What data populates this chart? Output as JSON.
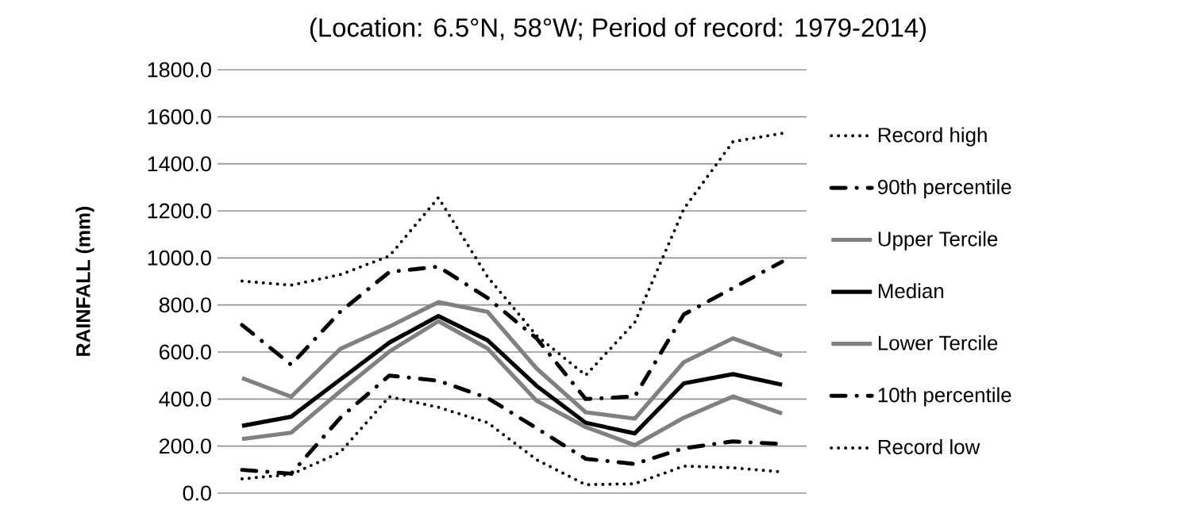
{
  "chart_data": {
    "type": "line",
    "title": "(Location: 6.5°N, 58°W; Period of record: 1979-2014)",
    "ylabel": "RAINFALL (mm)",
    "categories": [
      null,
      null,
      null,
      null,
      null,
      null,
      null,
      null,
      null,
      null,
      null,
      null
    ],
    "series": [
      {
        "name": "Record high",
        "color": "#000000",
        "line_style": "dotted",
        "values": [
          902,
          884,
          929,
          1008,
          1256,
          920,
          670,
          501,
          726,
          1209,
          1494,
          1530
        ]
      },
      {
        "name": "90th percentile",
        "color": "#000000",
        "line_style": "dashdot",
        "values": [
          715,
          546,
          771,
          940,
          963,
          830,
          658,
          400,
          411,
          760,
          872,
          984
        ]
      },
      {
        "name": "Upper Tercile",
        "color": "#808080",
        "line_style": "solid",
        "values": [
          489,
          410,
          613,
          708,
          812,
          771,
          530,
          344,
          317,
          557,
          658,
          584
        ]
      },
      {
        "name": "Median",
        "color": "#000000",
        "line_style": "solid",
        "values": [
          286,
          325,
          483,
          640,
          753,
          650,
          456,
          299,
          254,
          467,
          506,
          461
        ]
      },
      {
        "name": "Lower Tercile",
        "color": "#808080",
        "line_style": "solid",
        "values": [
          230,
          257,
          433,
          602,
          731,
          615,
          393,
          281,
          204,
          321,
          411,
          339
        ]
      },
      {
        "name": "10th percentile",
        "color": "#000000",
        "line_style": "dashdot",
        "values": [
          99,
          83,
          320,
          500,
          478,
          405,
          276,
          146,
          124,
          191,
          220,
          209
        ]
      },
      {
        "name": "Record low",
        "color": "#000000",
        "line_style": "dotted",
        "values": [
          61,
          79,
          174,
          410,
          365,
          300,
          142,
          36,
          40,
          115,
          108,
          90
        ]
      }
    ],
    "ylim": [
      0,
      1800
    ],
    "yticks": [
      {
        "value": 0,
        "label": "0.0"
      },
      {
        "value": 200,
        "label": "200.0"
      },
      {
        "value": 400,
        "label": "400.0"
      },
      {
        "value": 600,
        "label": "600.0"
      },
      {
        "value": 800,
        "label": "800.0"
      },
      {
        "value": 1000,
        "label": "1000.0"
      },
      {
        "value": 1200,
        "label": "1200.0"
      },
      {
        "value": 1400,
        "label": "1400.0"
      },
      {
        "value": 1600,
        "label": "1600.0"
      },
      {
        "value": 1800,
        "label": "1800.0"
      }
    ],
    "grid": "y",
    "legend": "right",
    "tick_labels": "y"
  }
}
